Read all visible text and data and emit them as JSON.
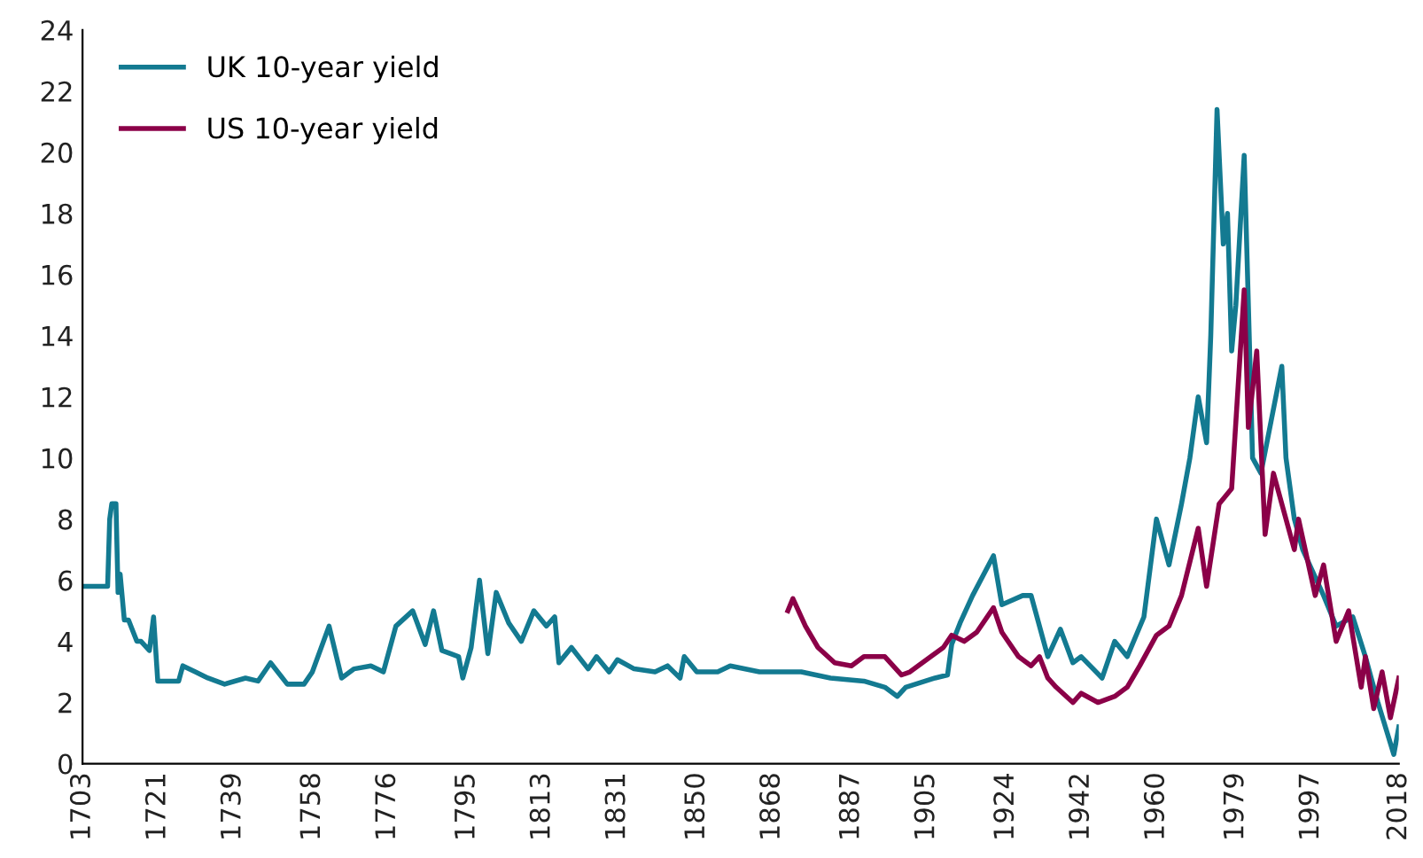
{
  "chart_data": {
    "type": "line",
    "xlim": [
      1703,
      2018
    ],
    "ylim": [
      0,
      24
    ],
    "xticks": [
      1703,
      1721,
      1739,
      1758,
      1776,
      1795,
      1813,
      1831,
      1850,
      1868,
      1887,
      1905,
      1924,
      1942,
      1960,
      1979,
      1997,
      2018
    ],
    "yticks": [
      0,
      2,
      4,
      6,
      8,
      10,
      12,
      14,
      16,
      18,
      20,
      22,
      24
    ],
    "grid": false,
    "legend": "top left",
    "marker": "none",
    "line_style": "solid",
    "series": [
      {
        "name": "UK 10-year yield",
        "color": "#137a91",
        "x": [
          1703,
          1709,
          1709.5,
          1710,
          1711,
          1711.5,
          1712,
          1713,
          1714,
          1716,
          1717,
          1719,
          1720,
          1721,
          1726,
          1727,
          1730,
          1733,
          1737,
          1742,
          1745,
          1748,
          1752,
          1756,
          1758,
          1762,
          1765,
          1768,
          1772,
          1775,
          1778,
          1782,
          1785,
          1787,
          1789,
          1793,
          1794,
          1796,
          1798,
          1800,
          1802,
          1805,
          1808,
          1811,
          1814,
          1816,
          1817,
          1820,
          1824,
          1826,
          1829,
          1831,
          1835,
          1840,
          1843,
          1846,
          1847,
          1850,
          1855,
          1858,
          1865,
          1875,
          1882,
          1890,
          1895,
          1898,
          1900,
          1907,
          1910,
          1911,
          1913,
          1916,
          1921,
          1923,
          1928,
          1930,
          1934,
          1937,
          1940,
          1942,
          1947,
          1950,
          1953,
          1957,
          1960,
          1963,
          1966,
          1968,
          1970,
          1972,
          1973,
          1974.5,
          1976,
          1977,
          1978,
          1979,
          1981,
          1982,
          1983,
          1985,
          1990,
          1991,
          1993,
          1995,
          2000,
          2003,
          2007,
          2010,
          2013,
          2016.8,
          2018
        ],
        "values": [
          5.8,
          5.8,
          8.0,
          8.5,
          8.5,
          5.6,
          6.2,
          4.7,
          4.7,
          4.0,
          4.0,
          3.7,
          4.8,
          2.7,
          2.7,
          3.2,
          3.0,
          2.8,
          2.6,
          2.8,
          2.7,
          3.3,
          2.6,
          2.6,
          3.0,
          4.5,
          2.8,
          3.1,
          3.2,
          3.0,
          4.5,
          5.0,
          3.9,
          5.0,
          3.7,
          3.5,
          2.8,
          3.8,
          6.0,
          3.6,
          5.6,
          4.6,
          4.0,
          5.0,
          4.5,
          4.8,
          3.3,
          3.8,
          3.1,
          3.5,
          3.0,
          3.4,
          3.1,
          3.0,
          3.2,
          2.8,
          3.5,
          3.0,
          3.0,
          3.2,
          3.0,
          3.0,
          2.8,
          2.7,
          2.5,
          2.2,
          2.5,
          2.8,
          2.9,
          3.9,
          4.6,
          5.5,
          6.8,
          5.2,
          5.5,
          5.5,
          3.5,
          4.4,
          3.3,
          3.5,
          2.8,
          4.0,
          3.5,
          4.8,
          8.0,
          6.5,
          8.5,
          10.0,
          12.0,
          10.5,
          14.0,
          21.4,
          17.0,
          18.0,
          13.5,
          15.0,
          19.9,
          15.0,
          10.0,
          9.5,
          13.0,
          10.0,
          8.0,
          7.0,
          5.5,
          4.5,
          4.8,
          3.5,
          2.0,
          0.3,
          1.2
        ]
      },
      {
        "name": "US 10-year yield",
        "color": "#8b0048",
        "x": [
          1871.8,
          1873,
          1876,
          1879,
          1883,
          1887,
          1890,
          1895,
          1899,
          1901,
          1906,
          1909,
          1911,
          1914,
          1917,
          1921,
          1923,
          1927,
          1930,
          1932,
          1934,
          1936,
          1940,
          1942,
          1946,
          1950,
          1953,
          1956,
          1958,
          1960,
          1963,
          1966,
          1970,
          1972,
          1975,
          1978,
          1981,
          1982,
          1984,
          1986,
          1988,
          1993,
          1994,
          1998,
          2000,
          2003,
          2006,
          2009,
          2010,
          2012,
          2014,
          2016,
          2018
        ],
        "values": [
          5.0,
          5.4,
          4.5,
          3.8,
          3.3,
          3.2,
          3.5,
          3.5,
          2.9,
          3.0,
          3.5,
          3.8,
          4.2,
          4.0,
          4.3,
          5.1,
          4.3,
          3.5,
          3.2,
          3.5,
          2.8,
          2.5,
          2.0,
          2.3,
          2.0,
          2.2,
          2.5,
          3.2,
          3.7,
          4.2,
          4.5,
          5.5,
          7.7,
          5.8,
          8.5,
          9.0,
          15.5,
          11.0,
          13.5,
          7.5,
          9.5,
          7.0,
          8.0,
          5.5,
          6.5,
          4.0,
          5.0,
          2.5,
          3.5,
          1.8,
          3.0,
          1.5,
          2.8
        ]
      }
    ]
  }
}
